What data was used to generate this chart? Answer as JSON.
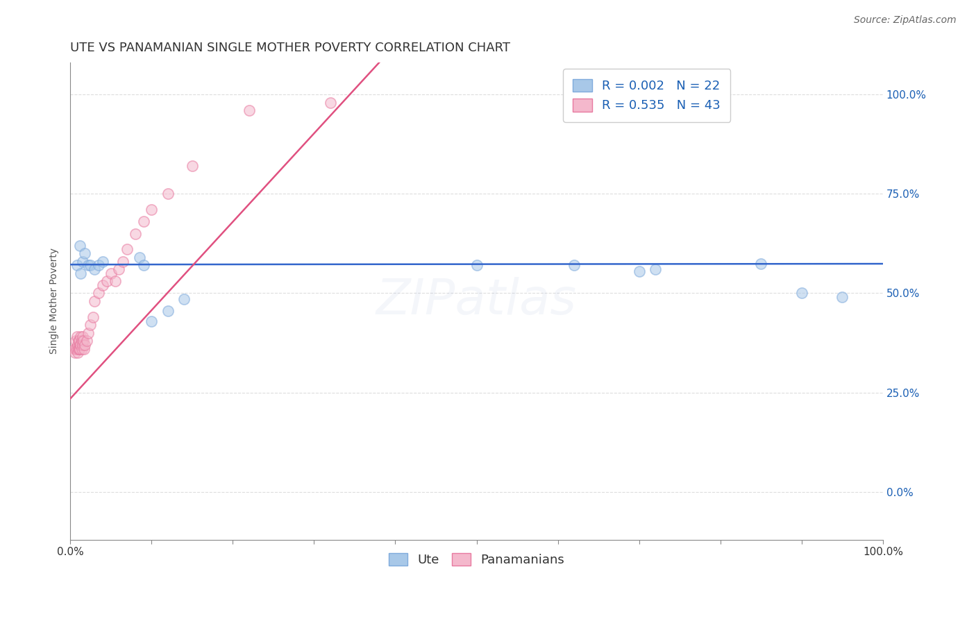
{
  "title": "UTE VS PANAMANIAN SINGLE MOTHER POVERTY CORRELATION CHART",
  "source_text": "Source: ZipAtlas.com",
  "ylabel": "Single Mother Poverty",
  "watermark": "ZIPatlas",
  "xlim": [
    0.0,
    1.0
  ],
  "ylim": [
    -0.12,
    1.08
  ],
  "ute_color": "#a8c8e8",
  "ute_edge_color": "#7faadc",
  "pan_color": "#f4b8cc",
  "pan_edge_color": "#e87aa0",
  "ute_R": 0.002,
  "ute_N": 22,
  "pan_R": 0.535,
  "pan_N": 43,
  "legend_color": "#1a5fb4",
  "background_color": "#ffffff",
  "grid_color": "#dddddd",
  "ute_scatter_x": [
    0.008,
    0.012,
    0.013,
    0.015,
    0.018,
    0.022,
    0.025,
    0.03,
    0.035,
    0.04,
    0.085,
    0.09,
    0.1,
    0.12,
    0.14,
    0.5,
    0.62,
    0.7,
    0.72,
    0.85,
    0.9,
    0.95
  ],
  "ute_scatter_y": [
    0.57,
    0.62,
    0.55,
    0.58,
    0.6,
    0.57,
    0.57,
    0.56,
    0.57,
    0.58,
    0.59,
    0.57,
    0.43,
    0.455,
    0.485,
    0.57,
    0.57,
    0.555,
    0.56,
    0.575,
    0.5,
    0.49
  ],
  "pan_scatter_x": [
    0.005,
    0.006,
    0.007,
    0.007,
    0.008,
    0.008,
    0.009,
    0.009,
    0.01,
    0.01,
    0.011,
    0.011,
    0.012,
    0.012,
    0.013,
    0.013,
    0.014,
    0.014,
    0.015,
    0.015,
    0.016,
    0.017,
    0.018,
    0.02,
    0.022,
    0.025,
    0.028,
    0.03,
    0.035,
    0.04,
    0.045,
    0.05,
    0.055,
    0.06,
    0.065,
    0.07,
    0.08,
    0.09,
    0.1,
    0.12,
    0.15,
    0.22,
    0.32
  ],
  "pan_scatter_y": [
    0.36,
    0.35,
    0.38,
    0.36,
    0.39,
    0.36,
    0.37,
    0.35,
    0.38,
    0.36,
    0.36,
    0.38,
    0.37,
    0.36,
    0.39,
    0.37,
    0.38,
    0.36,
    0.39,
    0.37,
    0.38,
    0.36,
    0.37,
    0.38,
    0.4,
    0.42,
    0.44,
    0.48,
    0.5,
    0.52,
    0.53,
    0.55,
    0.53,
    0.56,
    0.58,
    0.61,
    0.65,
    0.68,
    0.71,
    0.75,
    0.82,
    0.96,
    0.98
  ],
  "ute_trendline_x": [
    0.0,
    1.0
  ],
  "ute_trendline_y": [
    0.572,
    0.574
  ],
  "pan_trendline_x": [
    -0.02,
    0.38
  ],
  "pan_trendline_y": [
    0.19,
    1.08
  ],
  "title_fontsize": 13,
  "axis_label_fontsize": 10,
  "tick_fontsize": 11,
  "legend_fontsize": 13,
  "watermark_fontsize": 52,
  "watermark_alpha": 0.12,
  "source_fontsize": 10,
  "marker_size": 120,
  "marker_alpha": 0.55,
  "ute_line_color": "#3366cc",
  "pan_line_color": "#e05080"
}
